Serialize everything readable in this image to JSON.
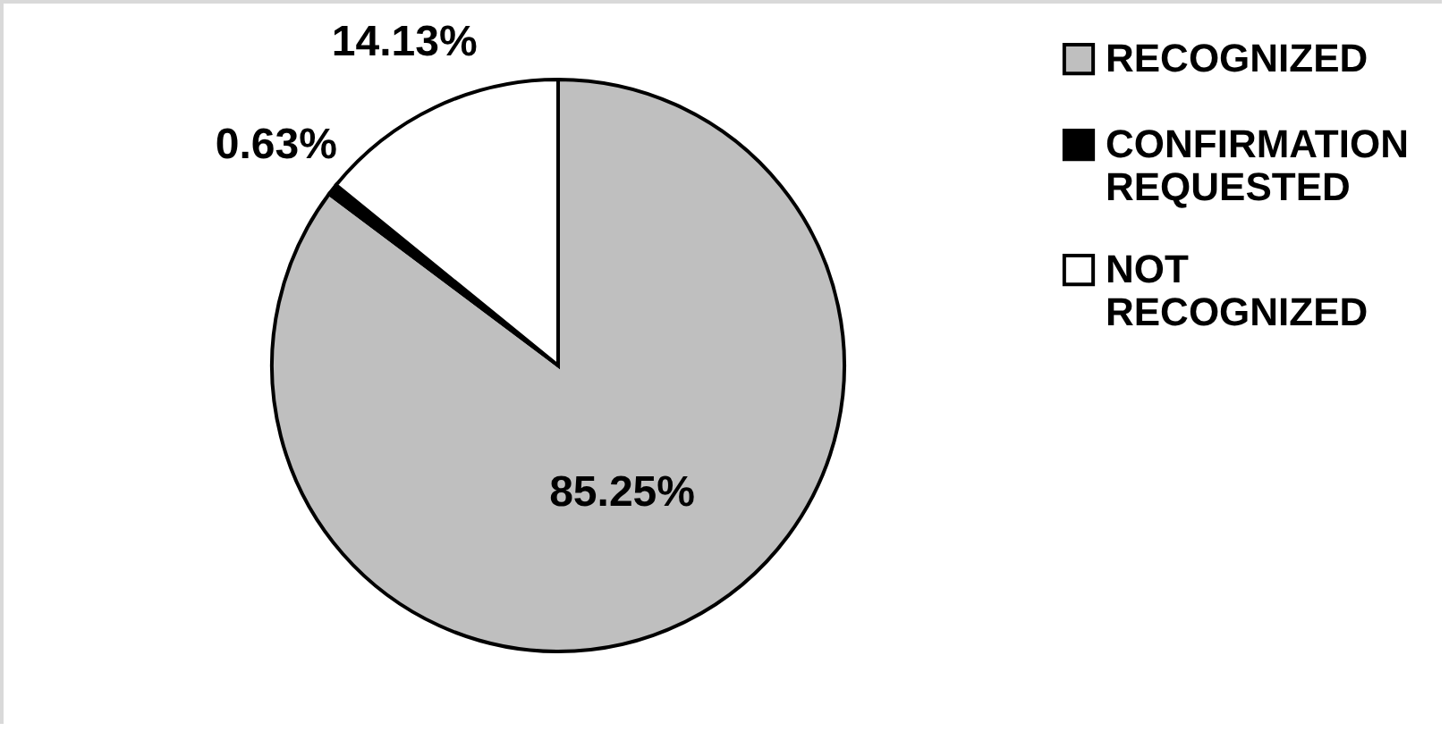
{
  "chart_data": {
    "type": "pie",
    "categories": [
      "RECOGNIZED",
      "CONFIRMATION REQUESTED",
      "NOT RECOGNIZED"
    ],
    "values": [
      85.25,
      0.63,
      14.13
    ],
    "colors": [
      "#bfbfbf",
      "#000000",
      "#ffffff"
    ],
    "value_labels": [
      "85.25%",
      "0.63%",
      "14.13%"
    ],
    "legend": "right"
  }
}
